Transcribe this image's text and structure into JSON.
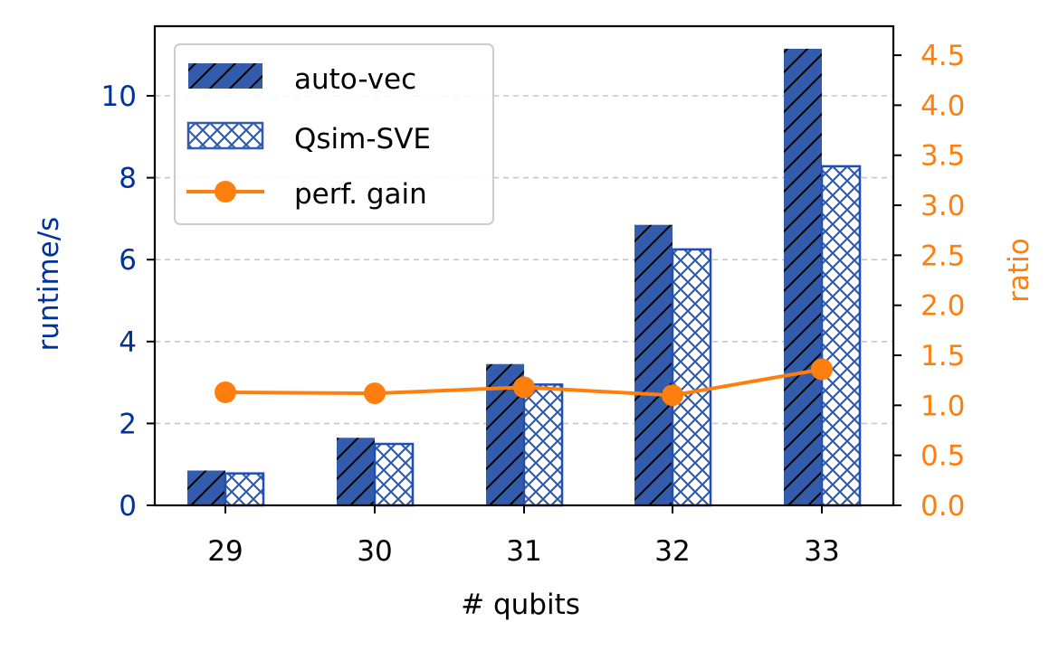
{
  "colors": {
    "bar": "#335cad",
    "bar_edge": "#1f4fb0",
    "line": "#ff7f0e",
    "left_axis": "#003399",
    "right_axis": "#ff7f0e",
    "grid": "#c8c8c8"
  },
  "chart_data": {
    "type": "bar",
    "xlabel": "# qubits",
    "ylabel": "runtime/s",
    "y2label": "ratio",
    "categories": [
      "29",
      "30",
      "31",
      "32",
      "33"
    ],
    "ylim": [
      0,
      11.7
    ],
    "y2lim": [
      0,
      4.79
    ],
    "yticks": [
      0,
      2,
      4,
      6,
      8,
      10
    ],
    "y2ticks": [
      0.0,
      0.5,
      1.0,
      1.5,
      2.0,
      2.5,
      3.0,
      3.5,
      4.0,
      4.5
    ],
    "grid": "horizontal dashed",
    "legend_position": "top-left",
    "series": [
      {
        "name": "auto-vec",
        "kind": "bar",
        "hatch": "diagonal",
        "values": [
          0.85,
          1.65,
          3.45,
          6.85,
          11.15
        ]
      },
      {
        "name": "Qsim-SVE",
        "kind": "bar",
        "hatch": "crosshatch",
        "values": [
          0.78,
          1.5,
          2.95,
          6.25,
          8.28
        ]
      },
      {
        "name": "perf. gain",
        "kind": "line",
        "axis": "right",
        "values": [
          1.13,
          1.12,
          1.18,
          1.1,
          1.36
        ]
      }
    ]
  }
}
